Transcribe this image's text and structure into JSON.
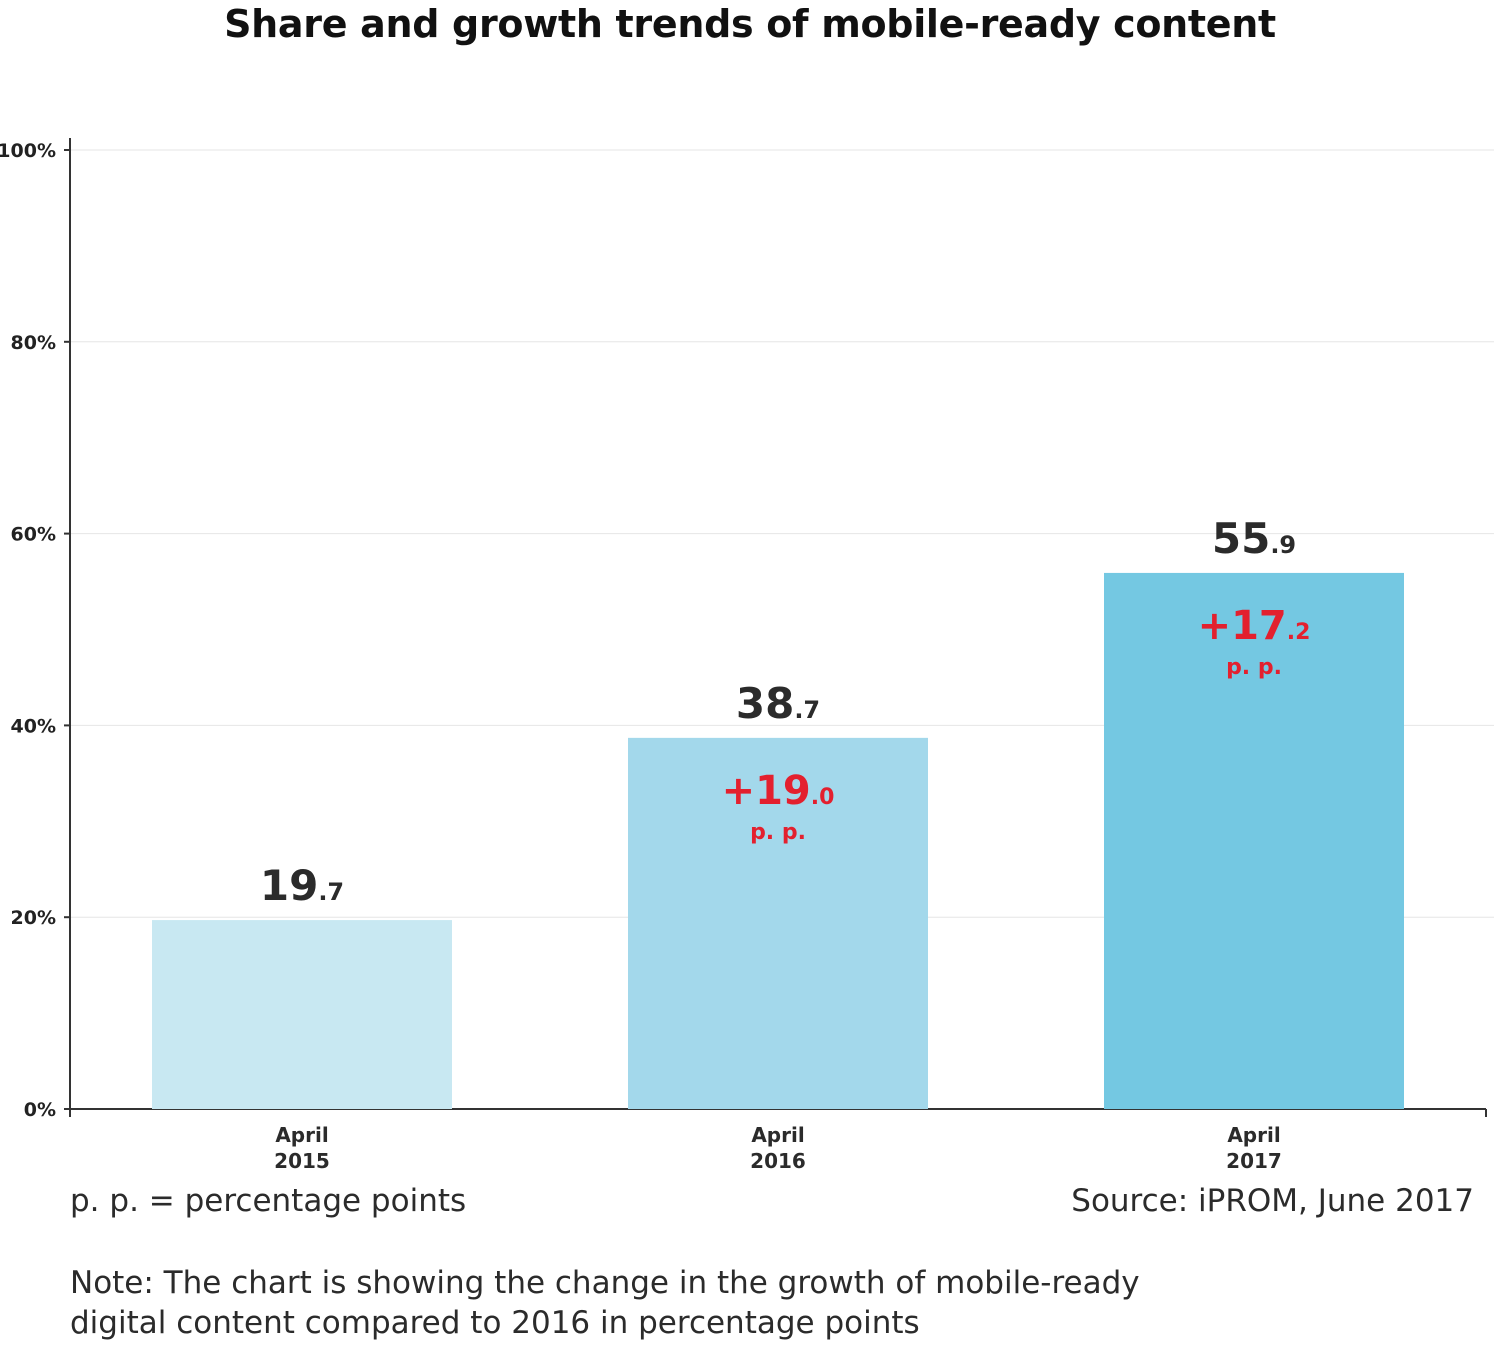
{
  "title": "Share and growth trends of mobile-ready content",
  "chart_data": {
    "type": "bar",
    "categories": [
      [
        "April",
        "2015"
      ],
      [
        "April",
        "2016"
      ],
      [
        "April",
        "2017"
      ]
    ],
    "values": [
      19.7,
      38.7,
      55.9
    ],
    "value_labels": [
      {
        "whole": "19",
        "decimal": ".7"
      },
      {
        "whole": "38",
        "decimal": ".7"
      },
      {
        "whole": "55",
        "decimal": ".9"
      }
    ],
    "changes": [
      null,
      {
        "whole": "+19",
        "decimal": ".0",
        "unit": "p. p."
      },
      {
        "whole": "+17",
        "decimal": ".2",
        "unit": "p. p."
      }
    ],
    "bar_colors": [
      "#c8e8f2",
      "#a3d8eb",
      "#74c8e2"
    ],
    "change_color": "#e3202e",
    "ylim": [
      0,
      100
    ],
    "yticks": [
      "0%",
      "20%",
      "40%",
      "60%",
      "80%",
      "100%"
    ],
    "ytick_values": [
      0,
      20,
      40,
      60,
      80,
      100
    ],
    "grid": true
  },
  "footer": {
    "pp_note": "p. p. = percentage points",
    "source": "Source: iPROM, June 2017",
    "note_lines": [
      "Note: The chart is showing the change in the growth of mobile-ready",
      "digital content compared to 2016 in percentage points"
    ]
  }
}
